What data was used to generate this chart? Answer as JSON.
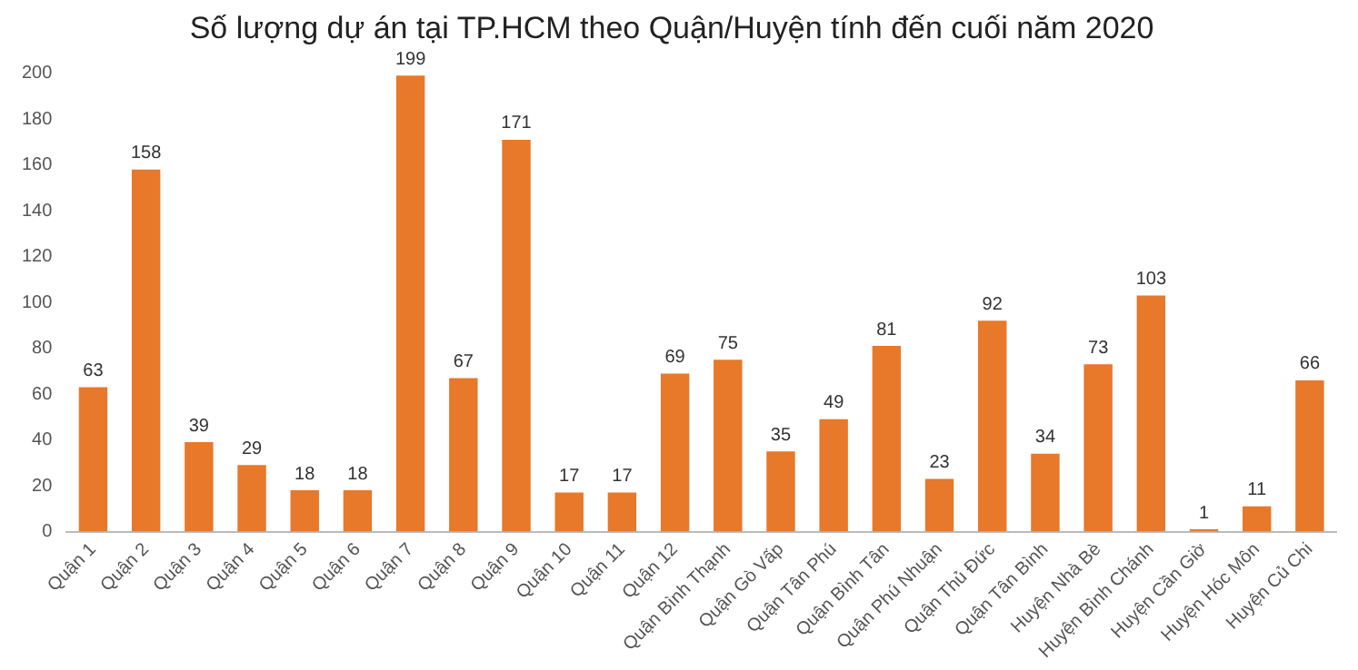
{
  "chart_data": {
    "type": "bar",
    "title": "Số lượng dự án tại TP.HCM theo Quận/Huyện tính đến cuối năm 2020",
    "categories": [
      "Quận 1",
      "Quận 2",
      "Quận 3",
      "Quận 4",
      "Quận 5",
      "Quận 6",
      "Quận 7",
      "Quận 8",
      "Quận 9",
      "Quận 10",
      "Quận 11",
      "Quận 12",
      "Quận Bình Thạnh",
      "Quận Gò Vấp",
      "Quận Tân Phú",
      "Quận Bình Tân",
      "Quận Phú Nhuận",
      "Quận Thủ Đức",
      "Quận Tân Bình",
      "Huyện Nhà Bè",
      "Huyện Bình Chánh",
      "Huyện Cần Giờ",
      "Huyện Hóc Môn",
      "Huyện Củ Chi"
    ],
    "values": [
      63,
      158,
      39,
      29,
      18,
      18,
      199,
      67,
      171,
      17,
      17,
      69,
      75,
      35,
      49,
      81,
      23,
      92,
      34,
      73,
      103,
      1,
      11,
      66
    ],
    "color": "#e8782a",
    "ylim": [
      0,
      200
    ],
    "yticks": [
      0,
      20,
      40,
      60,
      80,
      100,
      120,
      140,
      160,
      180,
      200
    ],
    "grid": false,
    "data_labels": true
  }
}
